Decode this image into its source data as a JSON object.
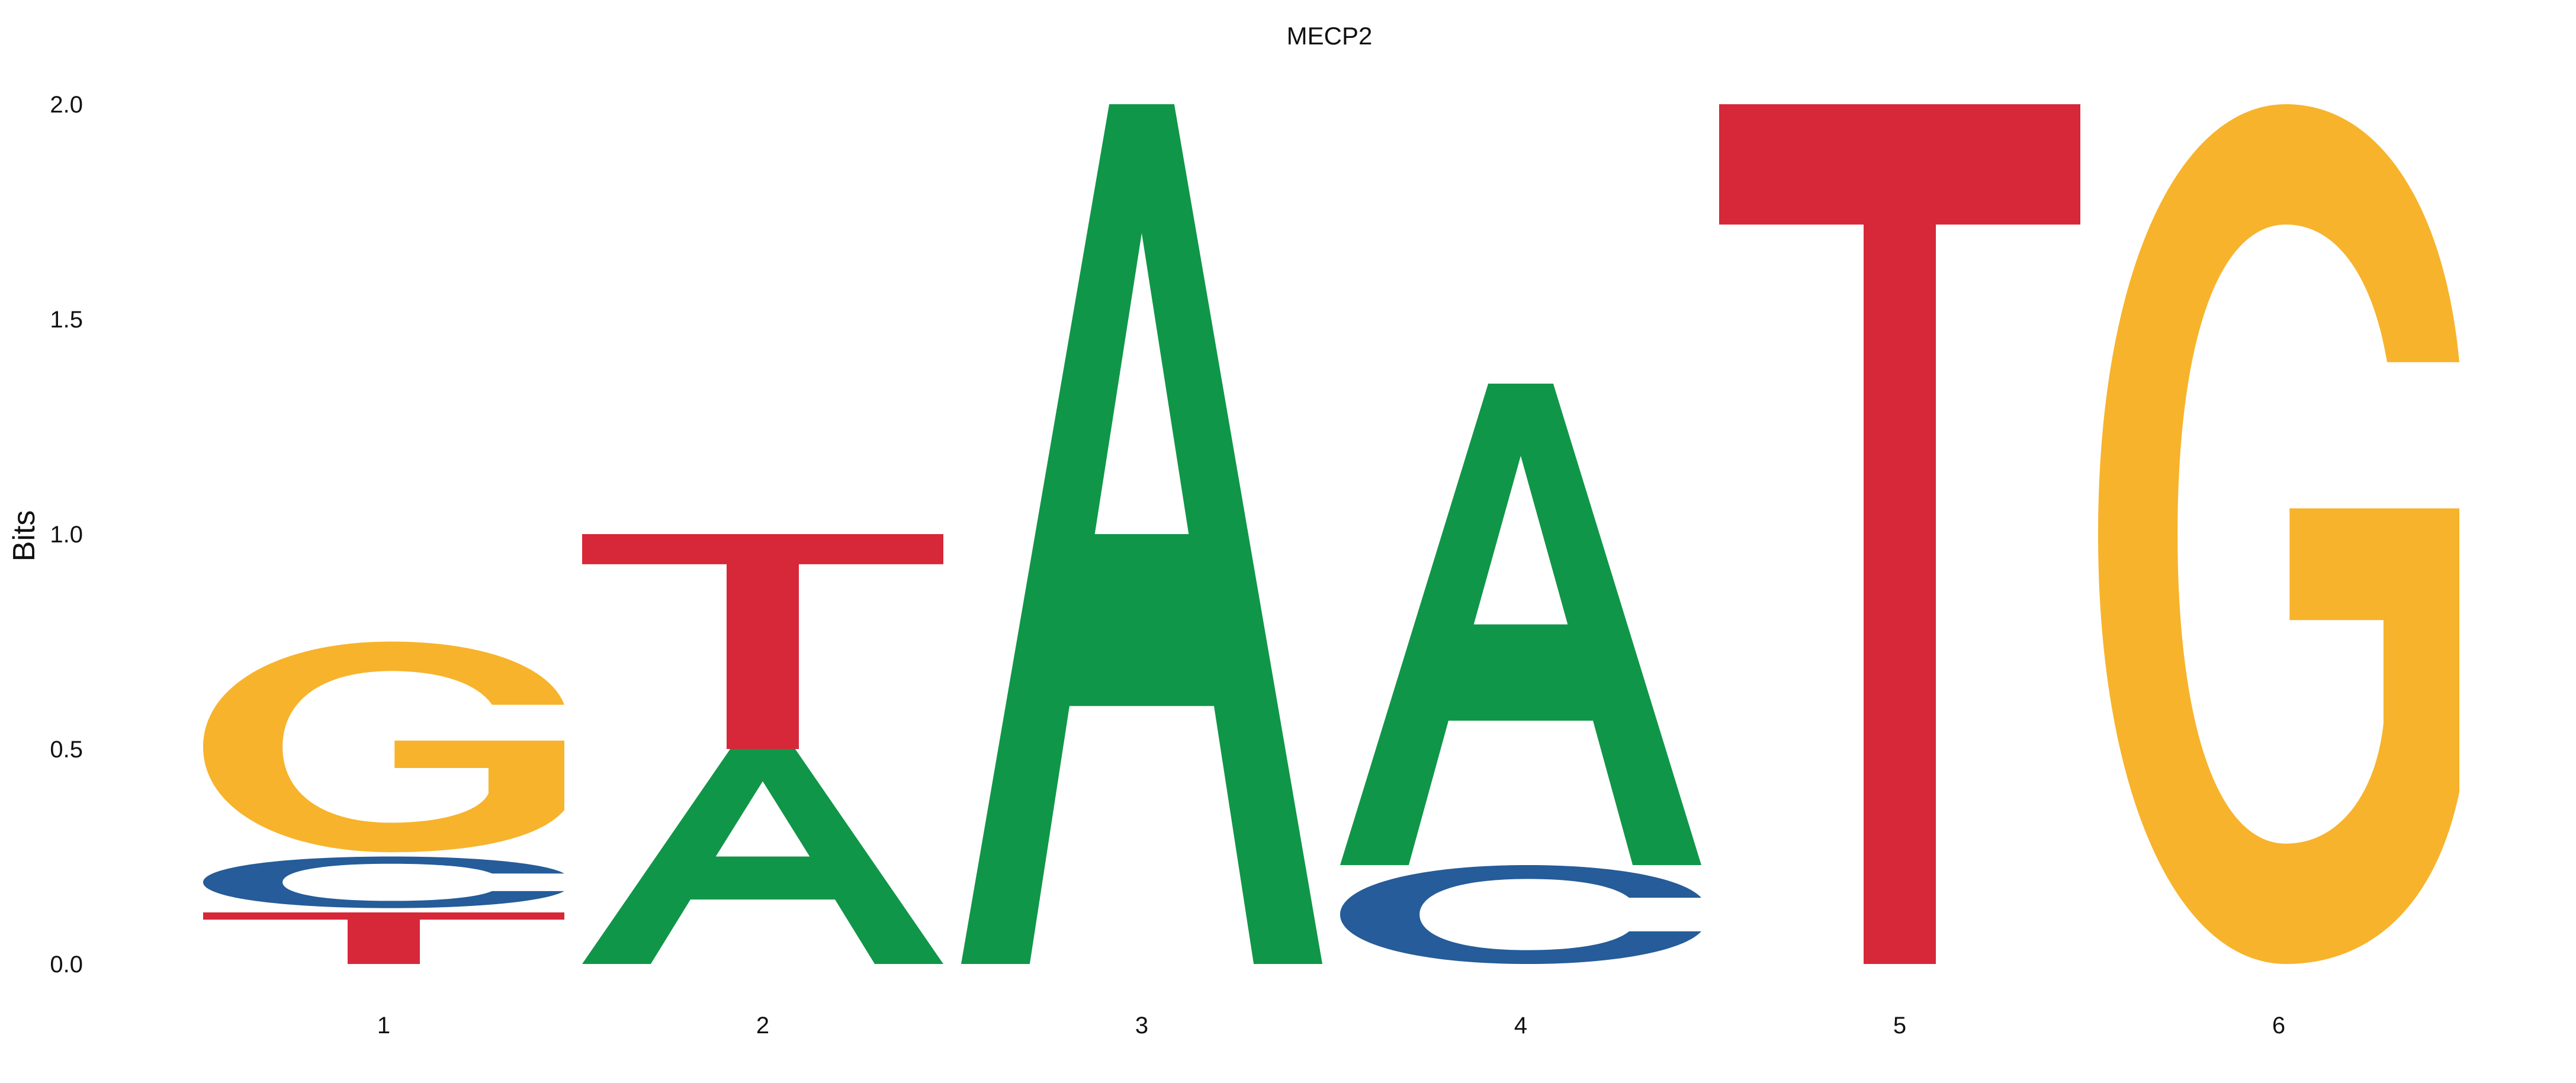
{
  "chart_data": {
    "type": "sequence-logo",
    "title": "MECP2",
    "xlabel": "",
    "ylabel": "Bits",
    "ylim": [
      0,
      2.0
    ],
    "yticks": [
      "0.0",
      "0.5",
      "1.0",
      "1.5",
      "2.0"
    ],
    "grid": false,
    "positions": [
      {
        "label": "1",
        "letters": [
          {
            "base": "T",
            "bottom": 0.0,
            "top": 0.12
          },
          {
            "base": "C",
            "bottom": 0.13,
            "top": 0.25
          },
          {
            "base": "G",
            "bottom": 0.26,
            "top": 0.75
          }
        ]
      },
      {
        "label": "2",
        "letters": [
          {
            "base": "A",
            "bottom": 0.0,
            "top": 0.5
          },
          {
            "base": "T",
            "bottom": 0.5,
            "top": 1.0
          }
        ]
      },
      {
        "label": "3",
        "letters": [
          {
            "base": "A",
            "bottom": 0.0,
            "top": 2.0
          }
        ]
      },
      {
        "label": "4",
        "letters": [
          {
            "base": "C",
            "bottom": 0.0,
            "top": 0.23
          },
          {
            "base": "A",
            "bottom": 0.23,
            "top": 1.35
          }
        ]
      },
      {
        "label": "5",
        "letters": [
          {
            "base": "T",
            "bottom": 0.0,
            "top": 2.0
          }
        ]
      },
      {
        "label": "6",
        "letters": [
          {
            "base": "G",
            "bottom": 0.0,
            "top": 2.0
          }
        ]
      }
    ],
    "colors": {
      "A": "#109648",
      "C": "#255C99",
      "G": "#F7B32B",
      "T": "#D62839"
    }
  }
}
